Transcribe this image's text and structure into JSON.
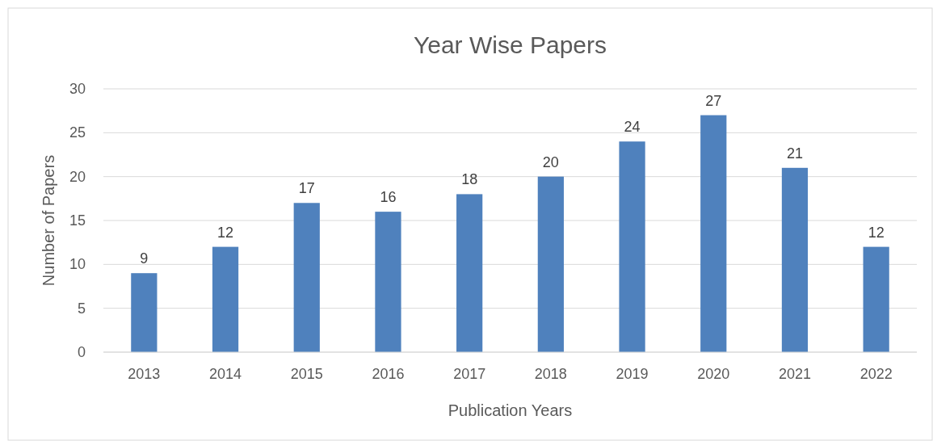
{
  "chart_data": {
    "type": "bar",
    "title": "Year Wise Papers",
    "xlabel": "Publication Years",
    "ylabel": "Number of Papers",
    "categories": [
      "2013",
      "2014",
      "2015",
      "2016",
      "2017",
      "2018",
      "2019",
      "2020",
      "2021",
      "2022"
    ],
    "values": [
      9,
      12,
      17,
      16,
      18,
      20,
      24,
      27,
      21,
      12
    ],
    "color": "#4f81bd",
    "ylim": [
      0,
      30
    ],
    "yticks": [
      0,
      5,
      10,
      15,
      20,
      25,
      30
    ],
    "grid": "y",
    "data_labels": true
  }
}
